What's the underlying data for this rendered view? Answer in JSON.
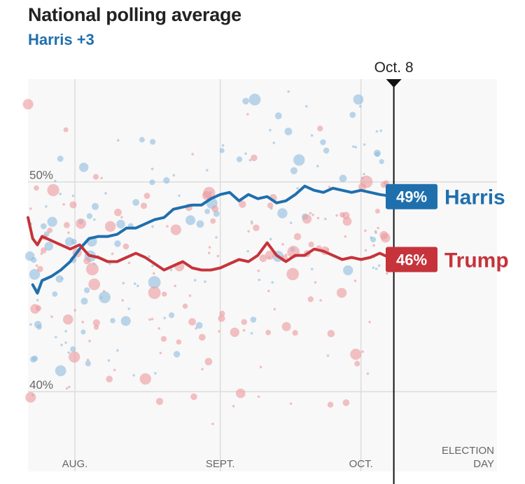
{
  "header": {
    "title": "National polling average",
    "subtitle": "Harris +3"
  },
  "colors": {
    "harris": "#1f6fad",
    "trump": "#c6333a",
    "harris_dot": "#8fbcdf",
    "trump_dot": "#ec9a9c",
    "plot_bg": "#f8f8f8",
    "grid": "#dcdcdc"
  },
  "chart_data": {
    "type": "line",
    "title": "National polling average",
    "subtitle": "Harris +3",
    "x_range": [
      0,
      100
    ],
    "ylim": [
      36.2,
      54.9
    ],
    "y_ticks": [
      {
        "value": 50,
        "label": "50%"
      },
      {
        "value": 40,
        "label": "40%"
      }
    ],
    "x_ticks": [
      {
        "day": 10,
        "label": "AUG."
      },
      {
        "day": 41,
        "label": "SEPT."
      },
      {
        "day": 71,
        "label": "OCT."
      }
    ],
    "end_label": [
      "ELECTION",
      "DAY"
    ],
    "current_marker": {
      "day": 78,
      "label": "Oct. 8"
    },
    "series": [
      {
        "name": "Harris",
        "final_label": "49%",
        "points": [
          [
            1,
            45.1
          ],
          [
            2,
            44.7
          ],
          [
            3,
            45.3
          ],
          [
            5,
            45.5
          ],
          [
            7,
            45.8
          ],
          [
            9,
            46.2
          ],
          [
            11,
            46.8
          ],
          [
            13,
            47.3
          ],
          [
            15,
            47.4
          ],
          [
            17,
            47.4
          ],
          [
            19,
            47.5
          ],
          [
            21,
            47.8
          ],
          [
            23,
            47.8
          ],
          [
            25,
            48.0
          ],
          [
            27,
            48.2
          ],
          [
            29,
            48.3
          ],
          [
            31,
            48.7
          ],
          [
            33,
            48.8
          ],
          [
            35,
            48.9
          ],
          [
            37,
            48.9
          ],
          [
            39,
            49.2
          ],
          [
            41,
            49.4
          ],
          [
            43,
            49.5
          ],
          [
            45,
            49.1
          ],
          [
            47,
            49.4
          ],
          [
            49,
            49.2
          ],
          [
            51,
            49.3
          ],
          [
            53,
            49.0
          ],
          [
            55,
            49.1
          ],
          [
            57,
            49.4
          ],
          [
            59,
            49.8
          ],
          [
            61,
            49.6
          ],
          [
            63,
            49.5
          ],
          [
            65,
            49.7
          ],
          [
            67,
            49.6
          ],
          [
            69,
            49.5
          ],
          [
            71,
            49.6
          ],
          [
            73,
            49.5
          ],
          [
            75,
            49.4
          ],
          [
            78,
            49.3
          ]
        ]
      },
      {
        "name": "Trump",
        "final_label": "46%",
        "points": [
          [
            0,
            48.3
          ],
          [
            1,
            47.3
          ],
          [
            2,
            47.0
          ],
          [
            3,
            47.4
          ],
          [
            5,
            47.2
          ],
          [
            7,
            47.0
          ],
          [
            9,
            46.8
          ],
          [
            11,
            47.0
          ],
          [
            13,
            46.5
          ],
          [
            15,
            46.4
          ],
          [
            17,
            46.2
          ],
          [
            19,
            46.2
          ],
          [
            21,
            46.4
          ],
          [
            23,
            46.6
          ],
          [
            25,
            46.4
          ],
          [
            27,
            46.1
          ],
          [
            29,
            45.8
          ],
          [
            31,
            46.0
          ],
          [
            33,
            46.2
          ],
          [
            35,
            45.9
          ],
          [
            37,
            45.8
          ],
          [
            39,
            45.8
          ],
          [
            41,
            45.9
          ],
          [
            43,
            46.1
          ],
          [
            45,
            46.3
          ],
          [
            47,
            46.2
          ],
          [
            49,
            46.5
          ],
          [
            51,
            47.1
          ],
          [
            53,
            46.5
          ],
          [
            55,
            46.2
          ],
          [
            57,
            46.5
          ],
          [
            59,
            46.5
          ],
          [
            61,
            46.8
          ],
          [
            63,
            46.7
          ],
          [
            65,
            46.5
          ],
          [
            67,
            46.3
          ],
          [
            69,
            46.4
          ],
          [
            71,
            46.3
          ],
          [
            73,
            46.4
          ],
          [
            75,
            46.6
          ],
          [
            78,
            46.3
          ]
        ]
      }
    ]
  }
}
